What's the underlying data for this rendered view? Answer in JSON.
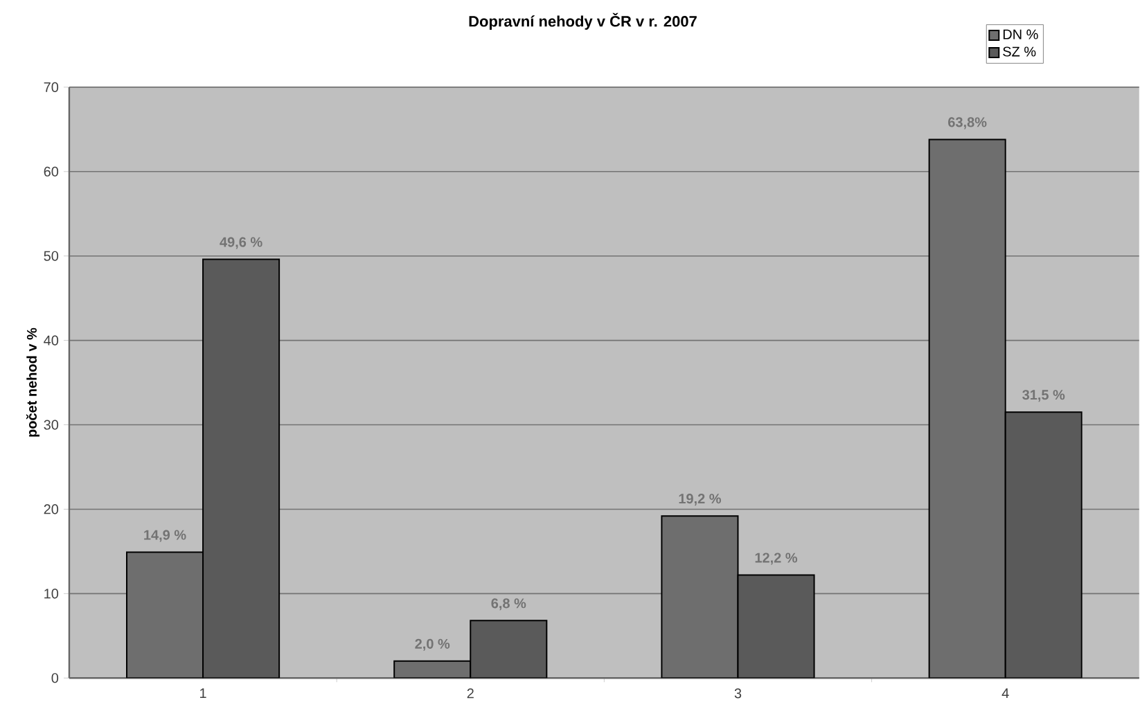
{
  "chart_data": {
    "type": "bar",
    "title": "Dopravní nehody v ČR v r. 2007",
    "ylabel": "počet nehod v %",
    "categories": [
      "1",
      "2",
      "3",
      "4"
    ],
    "series": [
      {
        "name": "DN %",
        "color": "#6e6e6e",
        "values": [
          14.9,
          2.0,
          19.2,
          63.8
        ],
        "value_labels": [
          "14,9 %",
          "2,0 %",
          "19,2 %",
          "63,8%"
        ]
      },
      {
        "name": "SZ %",
        "color": "#5a5a5a",
        "values": [
          49.6,
          6.8,
          12.2,
          31.5
        ],
        "value_labels": [
          "49,6 %",
          "6,8 %",
          "12,2 %",
          "31,5 %"
        ]
      }
    ],
    "ylim": [
      0,
      70
    ],
    "yticks": [
      0,
      10,
      20,
      30,
      40,
      50,
      60,
      70
    ],
    "grid": "y",
    "legend": "top right"
  }
}
